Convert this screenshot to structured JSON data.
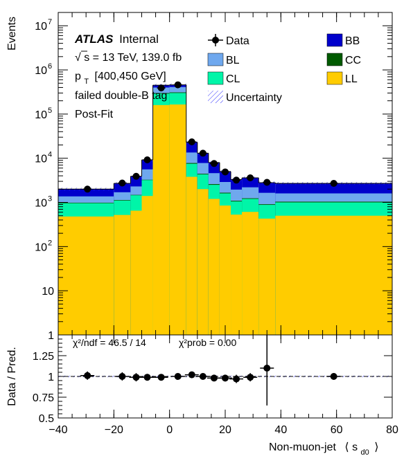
{
  "chart_data": {
    "type": "bar",
    "stacked": true,
    "log_scale_y": true,
    "x_label": "Non-muon-jet",
    "x_label_symbol": "⟨ s",
    "x_label_sub": "d0",
    "x_label_close": "⟩",
    "y_label": "Events",
    "ratio_y_label": "Data / Pred.",
    "xlim": [
      -40,
      80
    ],
    "ylim": [
      1,
      20000000
    ],
    "ratio_ylim": [
      0.5,
      1.5
    ],
    "x_ticks": [
      "−40",
      "−20",
      "0",
      "20",
      "40",
      "60",
      "80"
    ],
    "x_tick_values": [
      -40,
      -20,
      0,
      20,
      40,
      60,
      80
    ],
    "y_ticks": [
      {
        "v": 1,
        "base": "1",
        "exp": ""
      },
      {
        "v": 10,
        "base": "10",
        "exp": ""
      },
      {
        "v": 100,
        "base": "10",
        "exp": "2"
      },
      {
        "v": 1000,
        "base": "10",
        "exp": "3"
      },
      {
        "v": 10000,
        "base": "10",
        "exp": "4"
      },
      {
        "v": 100000,
        "base": "10",
        "exp": "5"
      },
      {
        "v": 1000000,
        "base": "10",
        "exp": "6"
      },
      {
        "v": 10000000,
        "base": "10",
        "exp": "7"
      }
    ],
    "ratio_ticks": [
      {
        "v": 0.5,
        "label": "0.5"
      },
      {
        "v": 0.75,
        "label": "0.75"
      },
      {
        "v": 1.0,
        "label": "1"
      },
      {
        "v": 1.25,
        "label": "1.25"
      }
    ],
    "bins": [
      {
        "lo": -40,
        "hi": -20,
        "LL": 480,
        "CL": 960,
        "CC": 985,
        "BL": 1370,
        "BB": 2000
      },
      {
        "lo": -20,
        "hi": -14,
        "LL": 520,
        "CL": 1100,
        "CC": 1130,
        "BL": 1700,
        "BB": 2700
      },
      {
        "lo": -14,
        "hi": -10,
        "LL": 650,
        "CL": 1450,
        "CC": 1480,
        "BL": 2300,
        "BB": 3900
      },
      {
        "lo": -10,
        "hi": -6,
        "LL": 1400,
        "CL": 3200,
        "CC": 3260,
        "BL": 5600,
        "BB": 9200
      },
      {
        "lo": -6,
        "hi": 0,
        "LL": 160000,
        "CL": 290000,
        "CC": 300000,
        "BL": 400000,
        "BB": 450000
      },
      {
        "lo": 0,
        "hi": 6,
        "LL": 165000,
        "CL": 300000,
        "CC": 310000,
        "BL": 410000,
        "BB": 460000
      },
      {
        "lo": 6,
        "hi": 10,
        "LL": 3800,
        "CL": 7500,
        "CC": 7800,
        "BL": 13500,
        "BB": 23000
      },
      {
        "lo": 10,
        "hi": 14,
        "LL": 2000,
        "CL": 4300,
        "CC": 4450,
        "BL": 7800,
        "BB": 13000
      },
      {
        "lo": 14,
        "hi": 18,
        "LL": 1200,
        "CL": 2500,
        "CC": 2600,
        "BL": 4600,
        "BB": 8000
      },
      {
        "lo": 18,
        "hi": 22,
        "LL": 850,
        "CL": 1600,
        "CC": 1660,
        "BL": 2900,
        "BB": 5000
      },
      {
        "lo": 22,
        "hi": 26,
        "LL": 530,
        "CL": 1050,
        "CC": 1090,
        "BL": 1950,
        "BB": 3300
      },
      {
        "lo": 26,
        "hi": 32,
        "LL": 610,
        "CL": 1200,
        "CC": 1240,
        "BL": 2200,
        "BB": 3600
      },
      {
        "lo": 32,
        "hi": 38,
        "LL": 430,
        "CL": 880,
        "CC": 910,
        "BL": 1650,
        "BB": 2800
      },
      {
        "lo": 38,
        "hi": 80,
        "LL": 500,
        "CL": 1000,
        "CC": 1040,
        "BL": 1600,
        "BB": 2700
      }
    ],
    "data_points": [
      {
        "x": -29.5,
        "y": 2000,
        "ratio": 1.01,
        "ratio_err": 0.05
      },
      {
        "x": -17.0,
        "y": 2750,
        "ratio": 1.0,
        "ratio_err": 0.05
      },
      {
        "x": -12.0,
        "y": 3900,
        "ratio": 0.99,
        "ratio_err": 0.05
      },
      {
        "x": -8.0,
        "y": 9200,
        "ratio": 0.99,
        "ratio_err": 0.04
      },
      {
        "x": -3.0,
        "y": 390000,
        "ratio": 0.99,
        "ratio_err": 0.01
      },
      {
        "x": 3.0,
        "y": 460000,
        "ratio": 1.0,
        "ratio_err": 0.01
      },
      {
        "x": 8.0,
        "y": 23500,
        "ratio": 1.02,
        "ratio_err": 0.02
      },
      {
        "x": 12.0,
        "y": 13000,
        "ratio": 1.0,
        "ratio_err": 0.03
      },
      {
        "x": 16.0,
        "y": 7600,
        "ratio": 0.98,
        "ratio_err": 0.03
      },
      {
        "x": 20.0,
        "y": 4900,
        "ratio": 0.98,
        "ratio_err": 0.04
      },
      {
        "x": 24.0,
        "y": 3200,
        "ratio": 0.97,
        "ratio_err": 0.05
      },
      {
        "x": 29.0,
        "y": 3600,
        "ratio": 0.99,
        "ratio_err": 0.05
      },
      {
        "x": 35.0,
        "y": 2850,
        "ratio": 1.1,
        "ratio_err": 0.45
      },
      {
        "x": 59.0,
        "y": 2700,
        "ratio": 1.0,
        "ratio_err": 0.04
      }
    ],
    "legend": [
      {
        "label": "Data",
        "type": "marker"
      },
      {
        "label": "BB",
        "color": "#0000cc"
      },
      {
        "label": "BL",
        "color": "#6fa8ee"
      },
      {
        "label": "CC",
        "color": "#005a00"
      },
      {
        "label": "CL",
        "color": "#00f5a8"
      },
      {
        "label": "LL",
        "color": "#ffcc00"
      },
      {
        "label": "Uncertainty",
        "type": "hatch"
      }
    ],
    "colors": {
      "BB": "#0000cc",
      "BL": "#6fa8ee",
      "CC": "#005a00",
      "CL": "#00f5a8",
      "LL": "#ffcc00"
    },
    "annotations": {
      "atlas": "ATLAS",
      "internal": "Internal",
      "sqrt": "√",
      "energy": "s = 13 TeV, 139.0 fb",
      "pt_p": "p",
      "pt_sub": "T",
      "pt_range": "[400,450 GeV]",
      "tag": "failed double-B tag",
      "fit": "Post-Fit"
    },
    "ratio_stats": {
      "chi2": "χ²/ndf = 46.5 / 14",
      "prob": "χ²prob = 0.00"
    }
  }
}
